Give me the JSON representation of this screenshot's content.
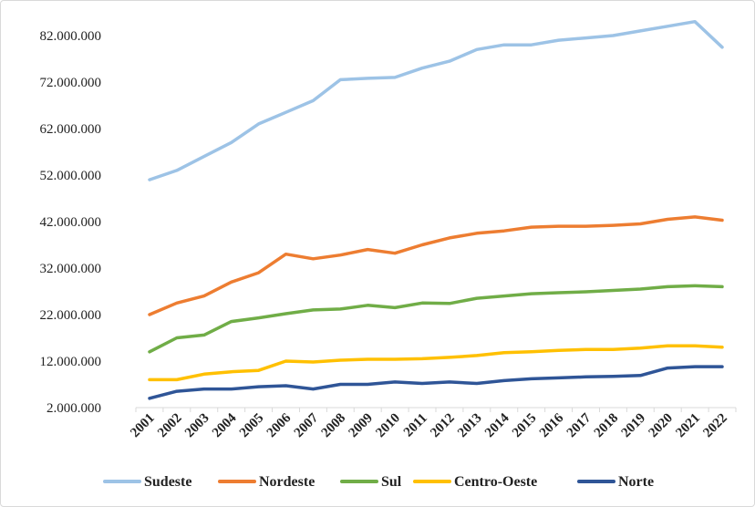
{
  "chart_data": {
    "type": "line",
    "title": "",
    "xlabel": "",
    "ylabel": "",
    "categories": [
      "2001",
      "2002",
      "2003",
      "2004",
      "2005",
      "2006",
      "2007",
      "2008",
      "2009",
      "2010",
      "2011",
      "2012",
      "2013",
      "2014",
      "2015",
      "2016",
      "2017",
      "2018",
      "2019",
      "2020",
      "2021",
      "2022"
    ],
    "y_ticks": [
      "2.000.000",
      "12.000.000",
      "22.000.000",
      "32.000.000",
      "42.000.000",
      "52.000.000",
      "62.000.000",
      "72.000.000",
      "82.000.000"
    ],
    "ylim": [
      2000000,
      82000000
    ],
    "grid": false,
    "legend_position": "bottom",
    "series": [
      {
        "name": "Sudeste",
        "color": "#9dc3e6",
        "values": [
          51000000,
          53000000,
          56000000,
          59000000,
          63000000,
          65500000,
          68000000,
          72500000,
          72800000,
          73000000,
          75000000,
          76500000,
          79000000,
          80000000,
          80000000,
          81000000,
          81500000,
          82000000,
          83000000,
          84000000,
          85000000,
          79500000
        ]
      },
      {
        "name": "Nordeste",
        "color": "#ed7d31",
        "values": [
          22000000,
          24500000,
          26000000,
          29000000,
          31000000,
          35000000,
          34000000,
          34800000,
          36000000,
          35200000,
          37000000,
          38500000,
          39500000,
          40000000,
          40800000,
          41000000,
          41000000,
          41200000,
          41500000,
          42500000,
          43000000,
          42300000
        ]
      },
      {
        "name": "Sul",
        "color": "#70ad47",
        "values": [
          14000000,
          17000000,
          17600000,
          20500000,
          21300000,
          22200000,
          23000000,
          23200000,
          24000000,
          23500000,
          24500000,
          24400000,
          25500000,
          26000000,
          26500000,
          26700000,
          26900000,
          27200000,
          27500000,
          28000000,
          28200000,
          28000000
        ]
      },
      {
        "name": "Centro-Oeste",
        "color": "#ffc000",
        "values": [
          8000000,
          8000000,
          9200000,
          9700000,
          10000000,
          12000000,
          11800000,
          12200000,
          12400000,
          12400000,
          12500000,
          12800000,
          13200000,
          13800000,
          14000000,
          14300000,
          14500000,
          14500000,
          14800000,
          15300000,
          15300000,
          15000000
        ]
      },
      {
        "name": "Norte",
        "color": "#2f5597",
        "values": [
          4000000,
          5500000,
          6000000,
          6000000,
          6500000,
          6700000,
          6000000,
          7000000,
          7000000,
          7500000,
          7200000,
          7500000,
          7200000,
          7800000,
          8200000,
          8400000,
          8600000,
          8700000,
          8900000,
          10500000,
          10800000,
          10800000
        ]
      }
    ]
  }
}
